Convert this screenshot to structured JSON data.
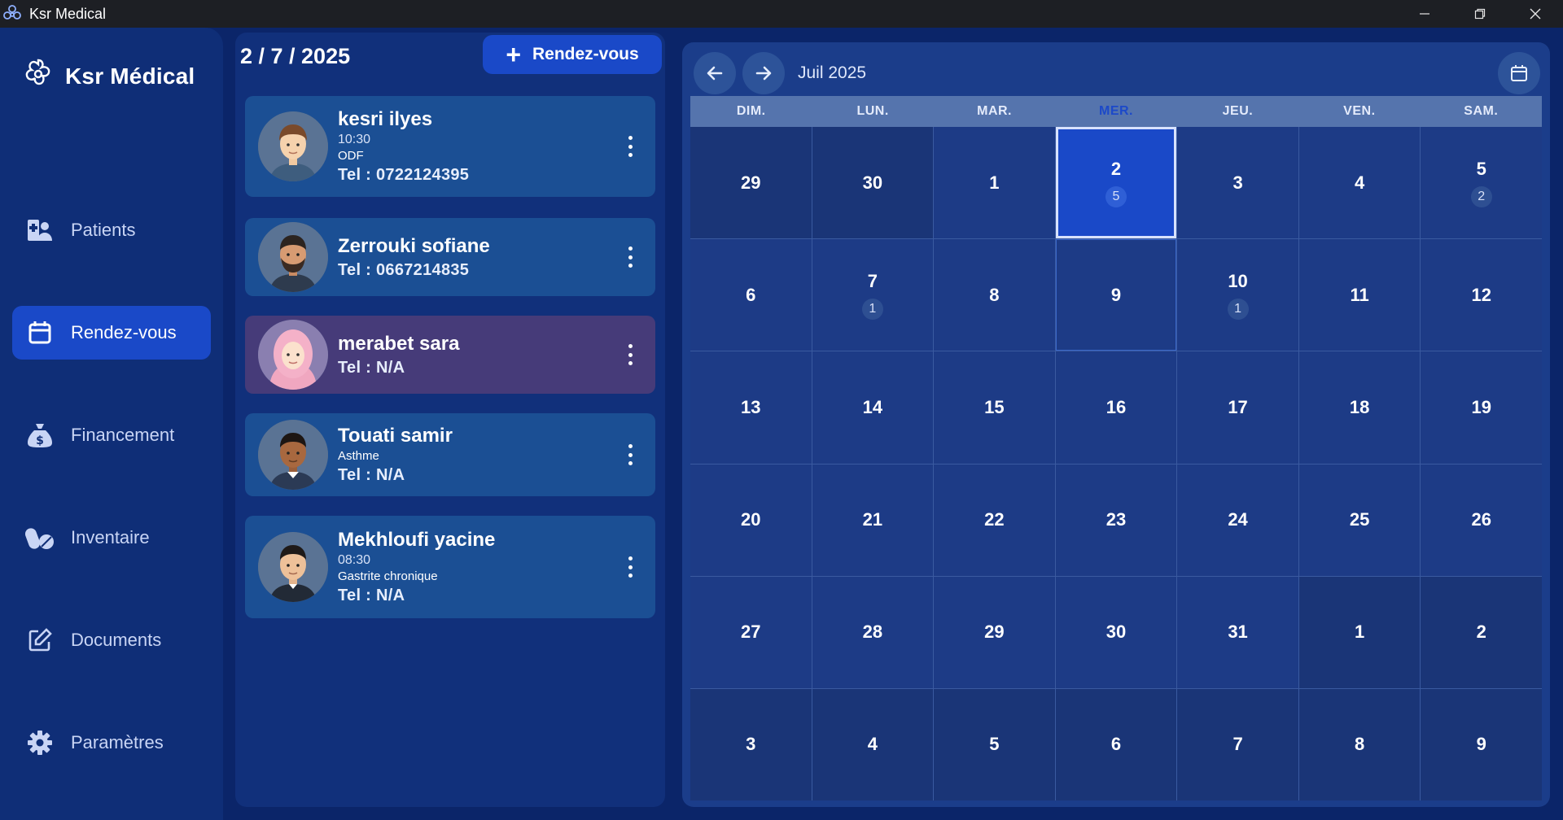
{
  "window": {
    "title": "Ksr Medical",
    "controls": [
      "minimize-icon",
      "restore-icon",
      "close-icon"
    ]
  },
  "sidebar": {
    "brand": "Ksr Médical",
    "items": [
      {
        "label": "Patients",
        "icon": "patients-icon",
        "active": false
      },
      {
        "label": "Rendez-vous",
        "icon": "calendar-icon",
        "active": true
      },
      {
        "label": "Financement",
        "icon": "money-bag-icon",
        "active": false
      },
      {
        "label": "Inventaire",
        "icon": "pills-icon",
        "active": false
      },
      {
        "label": "Documents",
        "icon": "edit-document-icon",
        "active": false
      },
      {
        "label": "Paramètres",
        "icon": "gear-icon",
        "active": false
      }
    ]
  },
  "appointments": {
    "date": "2 / 7 / 2025",
    "add_label": "Rendez-vous",
    "list": [
      {
        "name": "kesri ilyes",
        "time": "10:30",
        "note": "ODF",
        "tel": "Tel : 0722124395"
      },
      {
        "name": "Zerrouki sofiane",
        "time": "",
        "note": "",
        "tel": "Tel : 0667214835"
      },
      {
        "name": "merabet sara",
        "time": "",
        "note": "",
        "tel": "Tel : N/A"
      },
      {
        "name": "Touati samir",
        "time": "",
        "note": "Asthme",
        "tel": "Tel : N/A"
      },
      {
        "name": "Mekhloufi yacine",
        "time": "08:30",
        "note": "Gastrite chronique",
        "tel": "Tel : N/A"
      }
    ]
  },
  "calendar": {
    "month_label": "Juil 2025",
    "weekdays": [
      "DIM.",
      "LUN.",
      "MAR.",
      "MER.",
      "JEU.",
      "VEN.",
      "SAM."
    ],
    "today_weekday_index": 3,
    "weeks": [
      [
        {
          "d": "29",
          "o": true
        },
        {
          "d": "30",
          "o": true
        },
        {
          "d": "1"
        },
        {
          "d": "2",
          "b": "5",
          "sel": true
        },
        {
          "d": "3"
        },
        {
          "d": "4"
        },
        {
          "d": "5",
          "b": "2"
        }
      ],
      [
        {
          "d": "6"
        },
        {
          "d": "7",
          "b": "1"
        },
        {
          "d": "8"
        },
        {
          "d": "9",
          "hover": true
        },
        {
          "d": "10",
          "b": "1"
        },
        {
          "d": "11"
        },
        {
          "d": "12"
        }
      ],
      [
        {
          "d": "13"
        },
        {
          "d": "14"
        },
        {
          "d": "15"
        },
        {
          "d": "16"
        },
        {
          "d": "17"
        },
        {
          "d": "18"
        },
        {
          "d": "19"
        }
      ],
      [
        {
          "d": "20"
        },
        {
          "d": "21"
        },
        {
          "d": "22"
        },
        {
          "d": "23"
        },
        {
          "d": "24"
        },
        {
          "d": "25"
        },
        {
          "d": "26"
        }
      ],
      [
        {
          "d": "27"
        },
        {
          "d": "28"
        },
        {
          "d": "29"
        },
        {
          "d": "30"
        },
        {
          "d": "31"
        },
        {
          "d": "1",
          "o": true
        },
        {
          "d": "2",
          "o": true
        }
      ],
      [
        {
          "d": "3",
          "o": true
        },
        {
          "d": "4",
          "o": true
        },
        {
          "d": "5",
          "o": true
        },
        {
          "d": "6",
          "o": true
        },
        {
          "d": "7",
          "o": true
        },
        {
          "d": "8",
          "o": true
        },
        {
          "d": "9",
          "o": true
        }
      ]
    ]
  }
}
